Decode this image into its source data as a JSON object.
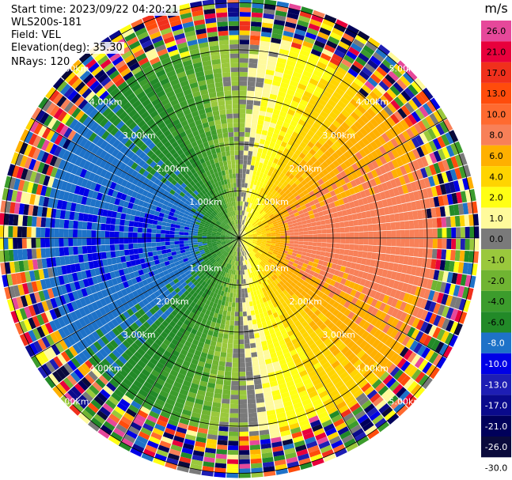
{
  "info": {
    "start_time": "Start time: 2023/09/22 04:20:21",
    "site": "WLS200s-181",
    "field": "Field: VEL",
    "elevation": "Elevation(deg): 35.30",
    "nrays": "NRays: 120"
  },
  "chart_data": {
    "type": "heatmap",
    "projection": "polar-ppi",
    "n_rays": 120,
    "range_rings": [
      {
        "label": "1.00km",
        "range_km": 1
      },
      {
        "label": "2.00km",
        "range_km": 2
      },
      {
        "label": "3.00km",
        "range_km": 3
      },
      {
        "label": "4.00km",
        "range_km": 4
      },
      {
        "label": "5.00km",
        "range_km": 5
      }
    ],
    "max_range_km": 5.1,
    "colorbar": {
      "unit": "m/s",
      "bins": [
        {
          "label": "26.0",
          "color": "#e6489a"
        },
        {
          "label": "21.0",
          "color": "#e8003c"
        },
        {
          "label": "17.0",
          "color": "#f0301c"
        },
        {
          "label": "13.0",
          "color": "#ff4c0c"
        },
        {
          "label": "10.0",
          "color": "#ff6a30"
        },
        {
          "label": "8.0",
          "color": "#f88058"
        },
        {
          "label": "6.0",
          "color": "#ffb000"
        },
        {
          "label": "4.0",
          "color": "#ffd400"
        },
        {
          "label": "2.0",
          "color": "#ffff14"
        },
        {
          "label": "1.0",
          "color": "#fffa9c"
        },
        {
          "label": "0.0",
          "color": "#7a7a7a"
        },
        {
          "label": "-1.0",
          "color": "#9ac83c"
        },
        {
          "label": "-2.0",
          "color": "#70b432"
        },
        {
          "label": "-4.0",
          "color": "#3c9c2c"
        },
        {
          "label": "-6.0",
          "color": "#228a28"
        },
        {
          "label": "-8.0",
          "color": "#1e72c8"
        },
        {
          "label": "-10.0",
          "color": "#0000e6"
        },
        {
          "label": "-13.0",
          "color": "#1e1eb4"
        },
        {
          "label": "-17.0",
          "color": "#0a0a8c"
        },
        {
          "label": "-21.0",
          "color": "#00005a"
        },
        {
          "label": "-26.0",
          "color": "#0a0a3c"
        },
        {
          "label": "-30.0",
          "color": ""
        }
      ]
    },
    "velocity_field": {
      "description_values": "toward-radar (negative) on west, away (positive) on east",
      "west_mean_ms": -8.0,
      "east_mean_ms": 9.0,
      "near_zero_band_ms": 0.0,
      "noise_range_km": [
        4.2,
        5.1
      ]
    },
    "grid": true,
    "legend_position": "right"
  }
}
